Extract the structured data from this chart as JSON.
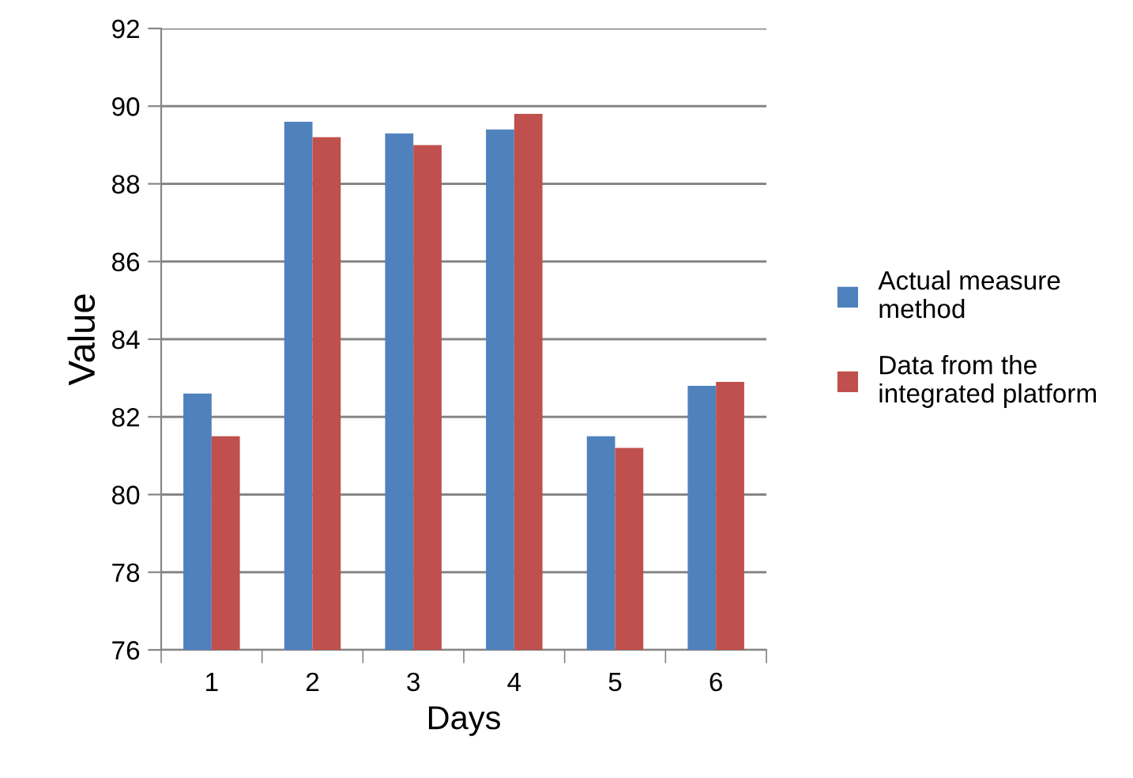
{
  "chart_data": {
    "type": "bar",
    "xlabel": "Days",
    "ylabel": "Value",
    "categories": [
      "1",
      "2",
      "3",
      "4",
      "5",
      "6"
    ],
    "series": [
      {
        "name": "Actual measure\nmethod",
        "color": "#4f81bd",
        "values": [
          82.6,
          89.6,
          89.3,
          89.4,
          81.5,
          82.8
        ]
      },
      {
        "name": "Data from the\nintegrated platform",
        "color": "#c0504d",
        "values": [
          81.5,
          89.2,
          89.0,
          89.8,
          81.2,
          82.9
        ]
      }
    ],
    "ylim": [
      76,
      92
    ],
    "yticks": [
      76,
      78,
      80,
      82,
      84,
      86,
      88,
      90,
      92
    ],
    "grid": "y",
    "legend": "right"
  }
}
